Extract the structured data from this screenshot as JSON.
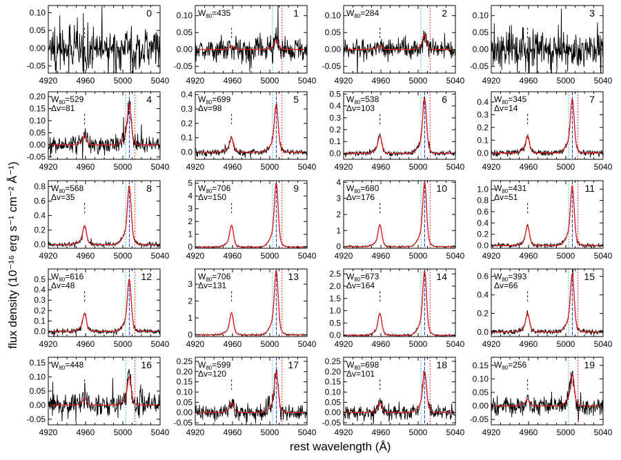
{
  "chart_data": {
    "type": "line",
    "layout": "grid",
    "grid_rows": 5,
    "grid_cols": 4,
    "xlabel": "rest wavelength (Å)",
    "ylabel": "flux density (10⁻¹⁶ erg s⁻¹ cm⁻² Å⁻¹)",
    "x_ticks": [
      4920,
      4960,
      5000,
      5040
    ],
    "xlim": [
      4920,
      5040
    ],
    "series": [
      {
        "name": "observed spectrum",
        "color": "#000000"
      },
      {
        "name": "model fit",
        "color": "#dd2222"
      }
    ],
    "reference_lines": {
      "cyan": "#33bbdd",
      "blue": "#2233dd",
      "red": "#ee3333",
      "marker": "#000000"
    },
    "panels": [
      {
        "id": "0",
        "w80": null,
        "dv": null,
        "ylim": [
          -0.07,
          0.12
        ],
        "yticks": [
          -0.05,
          0.0,
          0.05,
          0.1
        ],
        "ytick_labels": [
          "-0.05",
          "0.00",
          "0.05",
          "0.10"
        ],
        "noise": 0.03,
        "amp": 0.0,
        "hb_amp": 0.0,
        "fit": false,
        "vlines": {
          "marker": 4959,
          "cyan": null,
          "blue": null,
          "red": null
        }
      },
      {
        "id": "1",
        "w80": "435",
        "dv": null,
        "ylim": [
          -0.07,
          0.13
        ],
        "yticks": [
          -0.05,
          0.0,
          0.05,
          0.1
        ],
        "ytick_labels": [
          "-0.05",
          "0.00",
          "0.05",
          "0.10"
        ],
        "noise": 0.018,
        "amp": 0.03,
        "hb_amp": 0.01,
        "fit": true,
        "vlines": {
          "marker": 4959,
          "cyan": 5003,
          "blue": null,
          "red": 5013
        }
      },
      {
        "id": "2",
        "w80": "284",
        "dv": null,
        "ylim": [
          -0.07,
          0.13
        ],
        "yticks": [
          -0.05,
          0.0,
          0.05,
          0.1
        ],
        "ytick_labels": [
          "-0.05",
          "0.00",
          "0.05",
          "0.10"
        ],
        "noise": 0.014,
        "amp": 0.045,
        "hb_amp": 0.012,
        "fit": true,
        "vlines": {
          "marker": 4959,
          "cyan": 5003,
          "blue": null,
          "red": 5013
        }
      },
      {
        "id": "3",
        "w80": null,
        "dv": null,
        "ylim": [
          -0.07,
          0.13
        ],
        "yticks": [
          -0.05,
          0.0,
          0.05,
          0.1
        ],
        "ytick_labels": [
          "-0.05",
          "0.00",
          "0.05",
          "0.10"
        ],
        "noise": 0.03,
        "amp": 0.0,
        "hb_amp": 0.0,
        "fit": false,
        "vlines": {
          "marker": 4959,
          "cyan": null,
          "blue": null,
          "red": null
        }
      },
      {
        "id": "4",
        "w80": "529",
        "dv": "81",
        "ylim": [
          -0.06,
          0.22
        ],
        "yticks": [
          -0.05,
          0.0,
          0.05,
          0.1,
          0.15,
          0.2
        ],
        "ytick_labels": [
          "-0.05",
          "0.00",
          "0.05",
          "0.10",
          "0.15",
          "0.20"
        ],
        "noise": 0.016,
        "amp": 0.17,
        "hb_amp": 0.04,
        "fit": true,
        "vlines": {
          "marker": 4959,
          "cyan": 5003,
          "blue": 5007,
          "red": 5013
        }
      },
      {
        "id": "5",
        "w80": "699",
        "dv": "98",
        "ylim": [
          -0.05,
          0.42
        ],
        "yticks": [
          0.0,
          0.1,
          0.2,
          0.3,
          0.4
        ],
        "ytick_labels": [
          "0.0",
          "0.1",
          "0.2",
          "0.3",
          "0.4"
        ],
        "noise": 0.012,
        "amp": 0.33,
        "hb_amp": 0.1,
        "fit": true,
        "vlines": {
          "marker": 4959,
          "cyan": 5003,
          "blue": 5007,
          "red": 5013
        }
      },
      {
        "id": "6",
        "w80": "538",
        "dv": "103",
        "ylim": [
          -0.05,
          0.52
        ],
        "yticks": [
          0.0,
          0.1,
          0.2,
          0.3,
          0.4,
          0.5
        ],
        "ytick_labels": [
          "0.0",
          "0.1",
          "0.2",
          "0.3",
          "0.4",
          "0.5"
        ],
        "noise": 0.012,
        "amp": 0.46,
        "hb_amp": 0.15,
        "fit": true,
        "vlines": {
          "marker": 4959,
          "cyan": 5003,
          "blue": 5007,
          "red": 5013
        }
      },
      {
        "id": "7",
        "w80": "345",
        "dv": "14",
        "ylim": [
          -0.05,
          0.48
        ],
        "yticks": [
          0.0,
          0.1,
          0.2,
          0.3,
          0.4
        ],
        "ytick_labels": [
          "0.0",
          "0.1",
          "0.2",
          "0.3",
          "0.4"
        ],
        "noise": 0.012,
        "amp": 0.42,
        "hb_amp": 0.13,
        "fit": true,
        "vlines": {
          "marker": 4959,
          "cyan": 5003,
          "blue": 5007,
          "red": 5013
        }
      },
      {
        "id": "8",
        "w80": "568",
        "dv": "35",
        "ylim": [
          -0.05,
          0.88
        ],
        "yticks": [
          0.0,
          0.2,
          0.4,
          0.6,
          0.8
        ],
        "ytick_labels": [
          "0.0",
          "0.2",
          "0.4",
          "0.6",
          "0.8"
        ],
        "noise": 0.015,
        "amp": 0.8,
        "hb_amp": 0.26,
        "fit": true,
        "vlines": {
          "marker": 4959,
          "cyan": 5003,
          "blue": 5007,
          "red": 5013
        }
      },
      {
        "id": "9",
        "w80": "706",
        "dv": "150",
        "ylim": [
          -0.1,
          5.2
        ],
        "yticks": [
          0,
          1,
          2,
          3,
          4,
          5
        ],
        "ytick_labels": [
          "0",
          "1",
          "2",
          "3",
          "4",
          "5"
        ],
        "noise": 0.03,
        "amp": 5.0,
        "hb_amp": 1.7,
        "fit": true,
        "vlines": {
          "marker": 4959,
          "cyan": 5003,
          "blue": 5007,
          "red": 5013
        }
      },
      {
        "id": "10",
        "w80": "680",
        "dv": "176",
        "ylim": [
          -0.1,
          4.1
        ],
        "yticks": [
          0,
          1,
          2,
          3,
          4
        ],
        "ytick_labels": [
          "0",
          "1",
          "2",
          "3",
          "4"
        ],
        "noise": 0.025,
        "amp": 4.0,
        "hb_amp": 1.35,
        "fit": true,
        "vlines": {
          "marker": 4959,
          "cyan": 5003,
          "blue": 5007,
          "red": 5013
        }
      },
      {
        "id": "11",
        "w80": "431",
        "dv": "51",
        "ylim": [
          -0.05,
          1.15
        ],
        "yticks": [
          0.0,
          0.2,
          0.4,
          0.6,
          0.8,
          1.0
        ],
        "ytick_labels": [
          "0.0",
          "0.2",
          "0.4",
          "0.6",
          "0.8",
          "1.0"
        ],
        "noise": 0.018,
        "amp": 1.05,
        "hb_amp": 0.35,
        "fit": true,
        "vlines": {
          "marker": 4959,
          "cyan": 5003,
          "blue": 5007,
          "red": 5013
        }
      },
      {
        "id": "12",
        "w80": "616",
        "dv": "48",
        "ylim": [
          -0.05,
          0.6
        ],
        "yticks": [
          0.0,
          0.1,
          0.2,
          0.3,
          0.4,
          0.5
        ],
        "ytick_labels": [
          "0.0",
          "0.1",
          "0.2",
          "0.3",
          "0.4",
          "0.5"
        ],
        "noise": 0.012,
        "amp": 0.5,
        "hb_amp": 0.17,
        "fit": true,
        "vlines": {
          "marker": 4959,
          "cyan": 5003,
          "blue": 5007,
          "red": 5013
        }
      },
      {
        "id": "13",
        "w80": "706",
        "dv": "131",
        "ylim": [
          -0.1,
          3.9
        ],
        "yticks": [
          0,
          1,
          2,
          3
        ],
        "ytick_labels": [
          "0",
          "1",
          "2",
          "3"
        ],
        "noise": 0.025,
        "amp": 3.8,
        "hb_amp": 1.3,
        "fit": true,
        "vlines": {
          "marker": 4959,
          "cyan": 5003,
          "blue": 5007,
          "red": 5013
        }
      },
      {
        "id": "14",
        "w80": "673",
        "dv": "164",
        "ylim": [
          -0.05,
          2.7
        ],
        "yticks": [
          0.0,
          0.5,
          1.0,
          1.5,
          2.0,
          2.5
        ],
        "ytick_labels": [
          "0.0",
          "0.5",
          "1.0",
          "1.5",
          "2.0",
          "2.5"
        ],
        "noise": 0.02,
        "amp": 2.6,
        "hb_amp": 0.88,
        "fit": true,
        "vlines": {
          "marker": 4959,
          "cyan": 5003,
          "blue": 5007,
          "red": 5013
        }
      },
      {
        "id": "15",
        "w80": "393",
        "dv": "66",
        "ylim": [
          -0.05,
          0.68
        ],
        "yticks": [
          0.0,
          0.2,
          0.4,
          0.6
        ],
        "ytick_labels": [
          "0.0",
          "0.2",
          "0.4",
          "0.6"
        ],
        "noise": 0.014,
        "amp": 0.62,
        "hb_amp": 0.2,
        "fit": true,
        "vlines": {
          "marker": 4959,
          "cyan": 5003,
          "blue": 5007,
          "red": 5013
        }
      },
      {
        "id": "16",
        "w80": "448",
        "dv": null,
        "ylim": [
          -0.07,
          0.17
        ],
        "yticks": [
          -0.05,
          0.0,
          0.05,
          0.1,
          0.15
        ],
        "ytick_labels": [
          "-0.05",
          "0.00",
          "0.05",
          "0.10",
          "0.15"
        ],
        "noise": 0.02,
        "amp": 0.1,
        "hb_amp": 0.025,
        "fit": true,
        "vlines": {
          "marker": 4959,
          "cyan": 5003,
          "blue": null,
          "red": 5013
        }
      },
      {
        "id": "17",
        "w80": "599",
        "dv": "120",
        "ylim": [
          -0.06,
          0.27
        ],
        "yticks": [
          -0.05,
          0.0,
          0.05,
          0.1,
          0.15,
          0.2,
          0.25
        ],
        "ytick_labels": [
          "-0.05",
          "0.00",
          "0.05",
          "0.10",
          "0.15",
          "0.20",
          "0.25"
        ],
        "noise": 0.018,
        "amp": 0.2,
        "hb_amp": 0.05,
        "fit": true,
        "vlines": {
          "marker": 4959,
          "cyan": 5003,
          "blue": 5007,
          "red": 5013
        }
      },
      {
        "id": "18",
        "w80": "698",
        "dv": "101",
        "ylim": [
          -0.06,
          0.27
        ],
        "yticks": [
          -0.05,
          0.0,
          0.05,
          0.1,
          0.15,
          0.2,
          0.25
        ],
        "ytick_labels": [
          "-0.05",
          "0.00",
          "0.05",
          "0.10",
          "0.15",
          "0.20",
          "0.25"
        ],
        "noise": 0.018,
        "amp": 0.2,
        "hb_amp": 0.05,
        "fit": true,
        "vlines": {
          "marker": 4959,
          "cyan": 5003,
          "blue": 5007,
          "red": 5013
        }
      },
      {
        "id": "19",
        "w80": "256",
        "dv": null,
        "ylim": [
          -0.07,
          0.18
        ],
        "yticks": [
          -0.05,
          0.0,
          0.05,
          0.1,
          0.15
        ],
        "ytick_labels": [
          "-0.05",
          "0.00",
          "0.05",
          "0.10",
          "0.15"
        ],
        "noise": 0.018,
        "amp": 0.12,
        "hb_amp": 0.025,
        "fit": true,
        "vlines": {
          "marker": 4959,
          "cyan": 5003,
          "blue": null,
          "red": 5013
        }
      }
    ]
  }
}
